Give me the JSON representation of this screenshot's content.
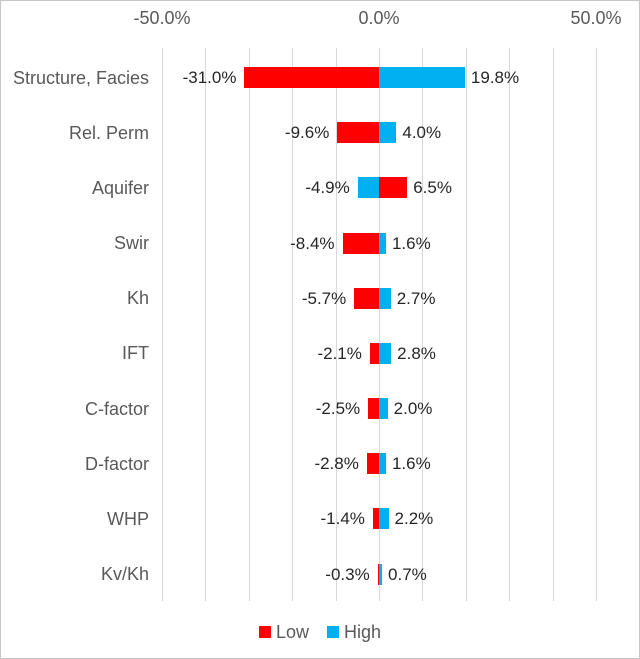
{
  "chart_data": {
    "type": "bar",
    "subtype": "tornado",
    "orientation": "horizontal",
    "title": "",
    "categories": [
      "Structure, Facies",
      "Rel. Perm",
      "Aquifer",
      "Swir",
      "Kh",
      "IFT",
      "C-factor",
      "D-factor",
      "WHP",
      "Kv/Kh"
    ],
    "series": [
      {
        "name": "Low",
        "color": "#FF0000",
        "values": [
          -31.0,
          -9.6,
          6.5,
          -8.4,
          -5.7,
          -2.1,
          -2.5,
          -2.8,
          -1.4,
          -0.3
        ],
        "labels": [
          "-31.0%",
          "-9.6%",
          "6.5%",
          "-8.4%",
          "-5.7%",
          "-2.1%",
          "-2.5%",
          "-2.8%",
          "-1.4%",
          "-0.3%"
        ]
      },
      {
        "name": "High",
        "color": "#00B0F0",
        "values": [
          19.8,
          4.0,
          -4.9,
          1.6,
          2.7,
          2.8,
          2.0,
          1.6,
          2.2,
          0.7
        ],
        "labels": [
          "19.8%",
          "4.0%",
          "-4.9%",
          "1.6%",
          "2.7%",
          "2.8%",
          "2.0%",
          "1.6%",
          "2.2%",
          "0.7%"
        ]
      }
    ],
    "x_axis": {
      "position": "top",
      "min": -50,
      "max": 50,
      "gridline_step": 10,
      "ticks": [
        "-50.0%",
        "0.0%",
        "50.0%"
      ],
      "tick_values": [
        -50,
        0,
        50
      ]
    },
    "grid": true,
    "legend": {
      "position": "bottom",
      "entries": [
        {
          "label": "Low",
          "color": "#FF0000"
        },
        {
          "label": "High",
          "color": "#00B0F0"
        }
      ]
    }
  },
  "colors": {
    "low": "#FF0000",
    "high": "#00B0F0",
    "gridline": "#D9D9D9",
    "axis_text": "#595959",
    "category_text": "#595959",
    "value_text": "#262626",
    "chart_border": "#C6C6C6",
    "background": "#FFFFFF"
  }
}
